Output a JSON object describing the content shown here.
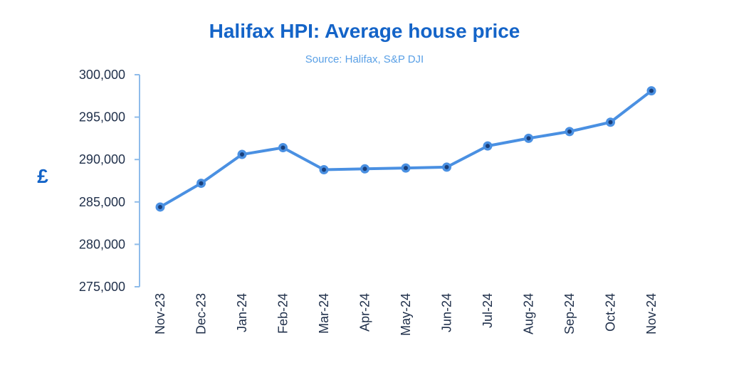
{
  "chart_data": {
    "type": "line",
    "title": "Halifax HPI: Average house price",
    "subtitle": "Source: Halifax, S&P DJI",
    "ylabel": "£",
    "xlabel": "",
    "categories": [
      "Nov-23",
      "Dec-23",
      "Jan-24",
      "Feb-24",
      "Mar-24",
      "Apr-24",
      "May-24",
      "Jun-24",
      "Jul-24",
      "Aug-24",
      "Sep-24",
      "Oct-24",
      "Nov-24"
    ],
    "series": [
      {
        "values": [
          284400,
          287200,
          290600,
          291400,
          288800,
          288900,
          289000,
          289100,
          291600,
          292500,
          293300,
          294400,
          298100
        ]
      }
    ],
    "ylim": [
      275000,
      300000
    ],
    "yticks": [
      300000,
      295000,
      290000,
      285000,
      280000,
      275000
    ],
    "ytick_labels": [
      "300,000",
      "295,000",
      "290,000",
      "285,000",
      "280,000",
      "275,000"
    ],
    "grid": false,
    "legend": "none",
    "colors": {
      "line": "#4a90e2",
      "marker_center": "#1a3f7a",
      "axis": "#8fbcea",
      "title": "#1464c8",
      "subtitle": "#5aa0e6"
    }
  }
}
